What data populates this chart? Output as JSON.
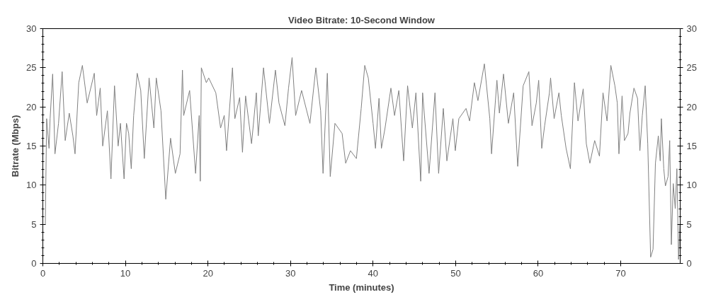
{
  "chart_data": {
    "type": "line",
    "title": "Video Bitrate: 10-Second Window",
    "xlabel": "Time (minutes)",
    "ylabel": "Bitrate (Mbps)",
    "x": [
      0.3,
      0.46,
      0.75,
      0.88,
      1.19,
      1.47,
      1.9,
      2.34,
      2.71,
      3.2,
      3.64,
      3.9,
      4.35,
      4.79,
      5.37,
      6.23,
      6.52,
      6.95,
      7.25,
      7.82,
      8.25,
      8.68,
      9.12,
      9.4,
      9.84,
      10.13,
      10.4,
      10.71,
      11.0,
      11.43,
      11.86,
      12.29,
      12.87,
      13.45,
      13.74,
      14.31,
      14.89,
      15.47,
      16.05,
      16.62,
      16.91,
      17.06,
      17.78,
      18.5,
      18.94,
      19.07,
      19.2,
      19.8,
      20.09,
      20.95,
      21.53,
      21.97,
      22.25,
      22.97,
      23.26,
      23.84,
      24.18,
      24.56,
      25.28,
      25.86,
      26.09,
      26.73,
      27.45,
      28.17,
      28.6,
      29.32,
      29.76,
      30.19,
      30.62,
      31.34,
      32.35,
      33.07,
      33.65,
      33.94,
      34.46,
      34.81,
      35.38,
      36.25,
      36.68,
      37.26,
      37.98,
      38.56,
      38.99,
      39.42,
      40.0,
      40.29,
      40.72,
      41.01,
      41.45,
      42.16,
      42.6,
      43.12,
      43.7,
      44.18,
      44.76,
      45.19,
      45.77,
      46.0,
      46.78,
      47.5,
      47.94,
      48.51,
      48.94,
      49.67,
      49.96,
      50.39,
      51.26,
      51.69,
      52.27,
      52.7,
      53.48,
      54.14,
      54.35,
      55.0,
      55.3,
      55.8,
      56.39,
      57.03,
      57.52,
      58.18,
      58.87,
      59.25,
      59.77,
      60.06,
      60.43,
      60.78,
      61.36,
      61.5,
      61.93,
      62.51,
      62.8,
      63.38,
      63.9,
      64.39,
      64.82,
      65.45,
      65.83,
      66.26,
      66.84,
      67.42,
      67.85,
      68.34,
      68.8,
      69.29,
      69.58,
      69.78,
      70.16,
      70.45,
      70.88,
      71.11,
      71.6,
      72.03,
      72.32,
      72.61,
      72.96,
      73.27,
      73.62,
      73.91,
      74.2,
      74.55,
      74.78,
      74.92,
      75.21,
      75.41,
      75.73,
      75.93,
      76.13,
      76.36,
      76.6,
      76.8,
      77.0,
      77.17
    ],
    "series": [
      {
        "color": "#808080",
        "values": [
          5.0,
          18.5,
          14.7,
          18.5,
          24.2,
          14.0,
          17.9,
          24.5,
          15.7,
          19.2,
          16.3,
          14.0,
          23.1,
          25.3,
          20.5,
          24.3,
          18.9,
          22.4,
          15.0,
          19.5,
          10.8,
          22.7,
          15.0,
          17.9,
          10.8,
          17.9,
          16.6,
          12.1,
          18.9,
          24.3,
          22.1,
          13.4,
          23.7,
          17.3,
          23.7,
          19.5,
          8.2,
          16.0,
          11.5,
          14.0,
          24.7,
          18.9,
          22.1,
          11.5,
          18.9,
          10.5,
          25.0,
          23.1,
          23.7,
          21.8,
          17.3,
          18.9,
          14.4,
          25.0,
          18.5,
          21.2,
          14.2,
          21.4,
          15.3,
          21.8,
          16.3,
          25.0,
          17.9,
          24.7,
          20.5,
          17.6,
          22.4,
          26.3,
          18.9,
          22.1,
          17.9,
          25.0,
          19.5,
          11.5,
          24.3,
          11.1,
          17.9,
          16.6,
          12.8,
          14.4,
          13.4,
          19.8,
          25.3,
          23.7,
          17.9,
          14.7,
          21.1,
          14.7,
          17.3,
          22.4,
          18.9,
          22.1,
          13.1,
          22.7,
          17.3,
          21.8,
          10.5,
          21.8,
          11.5,
          21.8,
          11.5,
          19.8,
          13.1,
          18.5,
          14.4,
          18.5,
          19.8,
          18.2,
          23.1,
          20.8,
          25.5,
          18.5,
          14.0,
          23.4,
          19.2,
          24.2,
          17.9,
          21.8,
          12.4,
          22.7,
          24.5,
          17.6,
          20.5,
          23.4,
          14.7,
          17.6,
          21.8,
          23.7,
          18.5,
          21.8,
          18.9,
          14.7,
          12.1,
          23.1,
          18.2,
          22.3,
          15.3,
          12.8,
          15.7,
          13.7,
          21.8,
          18.2,
          25.3,
          22.7,
          20.5,
          14.0,
          21.4,
          15.7,
          16.6,
          19.2,
          22.4,
          21.1,
          14.4,
          18.9,
          22.7,
          15.3,
          0.8,
          1.8,
          12.8,
          16.3,
          13.1,
          18.5,
          12.1,
          9.9,
          11.1,
          15.7,
          2.4,
          10.2,
          7.0,
          12.1,
          0.5,
          5.0
        ]
      }
    ],
    "xlim": [
      0,
      77.2
    ],
    "xticks": [
      0,
      10,
      20,
      30,
      40,
      50,
      60,
      70
    ],
    "ylim": [
      0,
      30
    ],
    "yticks": [
      0,
      5,
      10,
      15,
      20,
      25,
      30
    ],
    "y2lim": [
      0,
      30
    ],
    "y2ticks": [
      0,
      5,
      10,
      15,
      20,
      25,
      30
    ],
    "grid": false
  }
}
